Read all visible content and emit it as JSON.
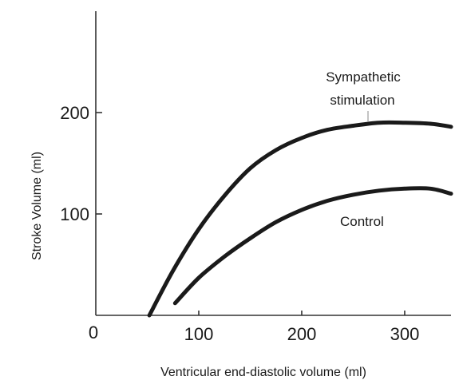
{
  "chart_data": {
    "type": "line",
    "title": "",
    "xlabel": "Ventricular end-diastolic volume (ml)",
    "ylabel": "Stroke Volume (ml)",
    "xlim": [
      0,
      345
    ],
    "ylim": [
      0,
      300
    ],
    "x_ticks": [
      100,
      200,
      300
    ],
    "y_ticks": [
      100,
      200
    ],
    "origin_label": "0",
    "grid": false,
    "legend": "none",
    "series": [
      {
        "name": "Sympathetic stimulation",
        "color": "#1a1a1a",
        "x": [
          52,
          75,
          100,
          125,
          150,
          175,
          200,
          225,
          250,
          275,
          300,
          325,
          345
        ],
        "y": [
          0,
          44,
          85,
          118,
          145,
          163,
          175,
          183,
          187,
          190,
          190,
          189,
          186
        ]
      },
      {
        "name": "Control",
        "color": "#1a1a1a",
        "x": [
          77,
          100,
          125,
          150,
          175,
          200,
          225,
          250,
          275,
          300,
          325,
          345
        ],
        "y": [
          12,
          37,
          58,
          76,
          92,
          104,
          113,
          119,
          123,
          125,
          125,
          120
        ]
      }
    ],
    "annotations": [
      {
        "text": "Sympathetic",
        "series": 0
      },
      {
        "text": "stimulation",
        "series": 0
      },
      {
        "text": "Control",
        "series": 1
      }
    ]
  }
}
